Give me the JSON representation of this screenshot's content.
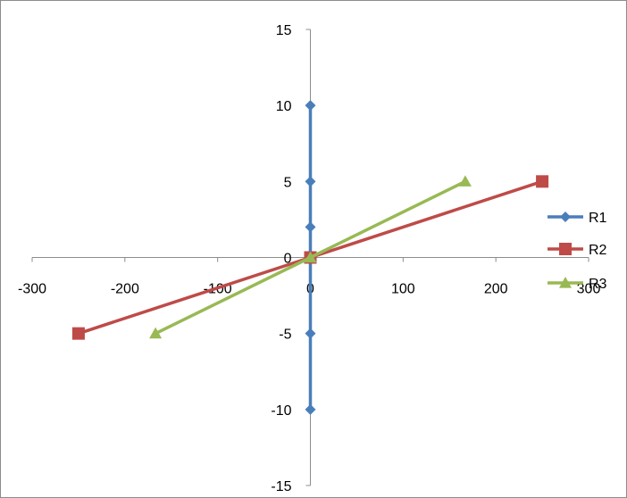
{
  "chart_data": {
    "type": "scatter",
    "title": "",
    "xlabel": "",
    "ylabel": "",
    "xlim": [
      -300,
      300
    ],
    "ylim": [
      -15,
      15
    ],
    "xticks": [
      "-300",
      "-200",
      "-100",
      "0",
      "100",
      "200",
      "300"
    ],
    "yticks": [
      "15",
      "10",
      "5",
      "0",
      "-5",
      "-10",
      "-15"
    ],
    "grid": false,
    "legend_position": "right",
    "series": [
      {
        "name": "R1",
        "color": "#4a7ebb",
        "marker": "diamond",
        "points": [
          [
            0,
            10
          ],
          [
            0,
            5
          ],
          [
            0,
            2
          ],
          [
            0,
            0
          ],
          [
            0,
            -5
          ],
          [
            0,
            -10
          ]
        ]
      },
      {
        "name": "R2",
        "color": "#be4b48",
        "marker": "square",
        "points": [
          [
            250,
            5
          ],
          [
            0,
            0
          ],
          [
            -250,
            -5
          ]
        ]
      },
      {
        "name": "R3",
        "color": "#98b954",
        "marker": "triangle",
        "points": [
          [
            167,
            5
          ],
          [
            0,
            0
          ],
          [
            -167,
            -5
          ]
        ]
      }
    ]
  }
}
